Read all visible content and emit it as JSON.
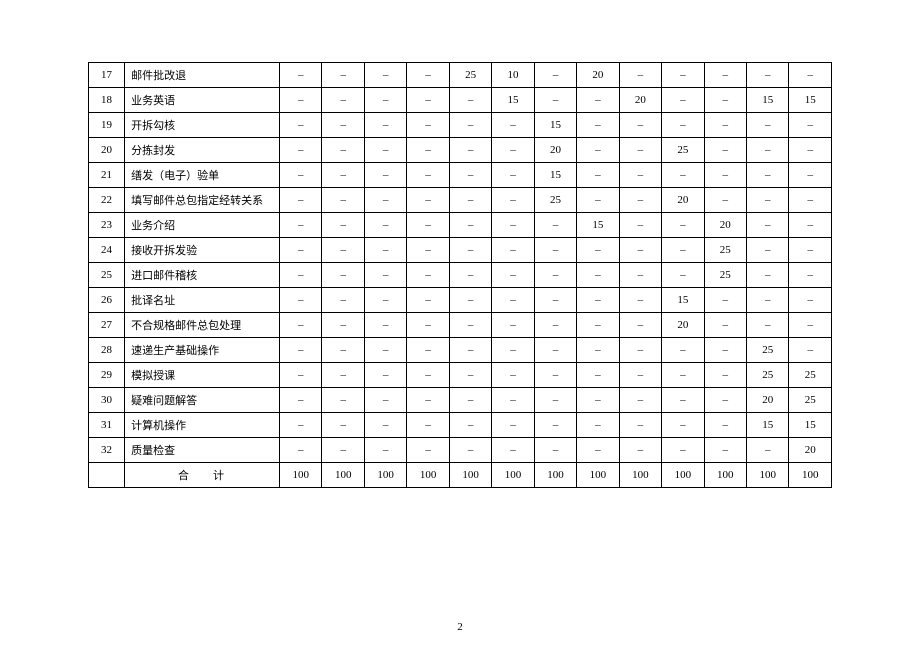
{
  "table": {
    "dash": "–",
    "rows": [
      {
        "idx": "17",
        "name": "邮件批改退",
        "vals": [
          "–",
          "–",
          "–",
          "–",
          "25",
          "10",
          "–",
          "20",
          "–",
          "–",
          "–",
          "–",
          "–"
        ]
      },
      {
        "idx": "18",
        "name": "业务英语",
        "vals": [
          "–",
          "–",
          "–",
          "–",
          "–",
          "15",
          "–",
          "–",
          "20",
          "–",
          "–",
          "15",
          "15"
        ]
      },
      {
        "idx": "19",
        "name": "开拆勾核",
        "vals": [
          "–",
          "–",
          "–",
          "–",
          "–",
          "–",
          "15",
          "–",
          "–",
          "–",
          "–",
          "–",
          "–"
        ]
      },
      {
        "idx": "20",
        "name": "分拣封发",
        "vals": [
          "–",
          "–",
          "–",
          "–",
          "–",
          "–",
          "20",
          "–",
          "–",
          "25",
          "–",
          "–",
          "–"
        ]
      },
      {
        "idx": "21",
        "name": "缮发（电子）验单",
        "vals": [
          "–",
          "–",
          "–",
          "–",
          "–",
          "–",
          "15",
          "–",
          "–",
          "–",
          "–",
          "–",
          "–"
        ]
      },
      {
        "idx": "22",
        "name": "填写邮件总包指定经转关系",
        "vals": [
          "–",
          "–",
          "–",
          "–",
          "–",
          "–",
          "25",
          "–",
          "–",
          "20",
          "–",
          "–",
          "–"
        ]
      },
      {
        "idx": "23",
        "name": "业务介绍",
        "vals": [
          "–",
          "–",
          "–",
          "–",
          "–",
          "–",
          "–",
          "15",
          "–",
          "–",
          "20",
          "–",
          "–"
        ]
      },
      {
        "idx": "24",
        "name": "接收开拆发验",
        "vals": [
          "–",
          "–",
          "–",
          "–",
          "–",
          "–",
          "–",
          "–",
          "–",
          "–",
          "25",
          "–",
          "–"
        ]
      },
      {
        "idx": "25",
        "name": "进口邮件稽核",
        "vals": [
          "–",
          "–",
          "–",
          "–",
          "–",
          "–",
          "–",
          "–",
          "–",
          "–",
          "25",
          "–",
          "–"
        ]
      },
      {
        "idx": "26",
        "name": "批译名址",
        "vals": [
          "–",
          "–",
          "–",
          "–",
          "–",
          "–",
          "–",
          "–",
          "–",
          "15",
          "–",
          "–",
          "–"
        ]
      },
      {
        "idx": "27",
        "name": "不合规格邮件总包处理",
        "vals": [
          "–",
          "–",
          "–",
          "–",
          "–",
          "–",
          "–",
          "–",
          "–",
          "20",
          "–",
          "–",
          "–"
        ]
      },
      {
        "idx": "28",
        "name": "速递生产基础操作",
        "vals": [
          "–",
          "–",
          "–",
          "–",
          "–",
          "–",
          "–",
          "–",
          "–",
          "–",
          "–",
          "25",
          "–"
        ]
      },
      {
        "idx": "29",
        "name": "模拟授课",
        "vals": [
          "–",
          "–",
          "–",
          "–",
          "–",
          "–",
          "–",
          "–",
          "–",
          "–",
          "–",
          "25",
          "25"
        ]
      },
      {
        "idx": "30",
        "name": "疑难问题解答",
        "vals": [
          "–",
          "–",
          "–",
          "–",
          "–",
          "–",
          "–",
          "–",
          "–",
          "–",
          "–",
          "20",
          "25"
        ]
      },
      {
        "idx": "31",
        "name": "计算机操作",
        "vals": [
          "–",
          "–",
          "–",
          "–",
          "–",
          "–",
          "–",
          "–",
          "–",
          "–",
          "–",
          "15",
          "15"
        ]
      },
      {
        "idx": "32",
        "name": "质量检查",
        "vals": [
          "–",
          "–",
          "–",
          "–",
          "–",
          "–",
          "–",
          "–",
          "–",
          "–",
          "–",
          "–",
          "20"
        ]
      }
    ],
    "total": {
      "label": "合计",
      "vals": [
        "100",
        "100",
        "100",
        "100",
        "100",
        "100",
        "100",
        "100",
        "100",
        "100",
        "100",
        "100",
        "100"
      ]
    }
  },
  "pageNumber": "2"
}
